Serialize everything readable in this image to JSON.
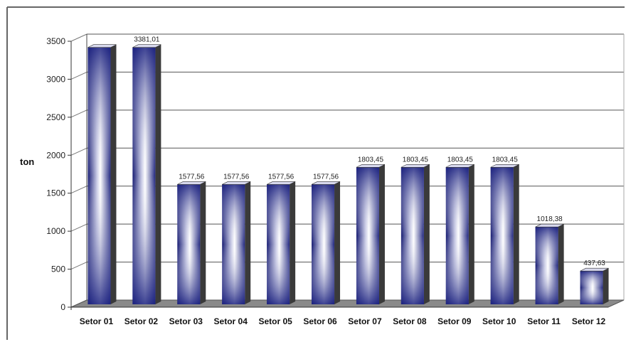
{
  "chart_data": {
    "type": "bar",
    "title": "",
    "xlabel": "",
    "ylabel": "ton",
    "ylim": [
      0,
      3500
    ],
    "yticks": [
      0,
      500,
      1000,
      1500,
      2000,
      2500,
      3000,
      3500
    ],
    "grid": true,
    "legend": "none",
    "categories": [
      "Setor 01",
      "Setor 02",
      "Setor 03",
      "Setor 04",
      "Setor 05",
      "Setor 06",
      "Setor 07",
      "Setor 08",
      "Setor 09",
      "Setor 10",
      "Setor 11",
      "Setor 12"
    ],
    "values": [
      3381.01,
      3381.01,
      1577.56,
      1577.56,
      1577.56,
      1577.56,
      1803.45,
      1803.45,
      1803.45,
      1803.45,
      1018.38,
      437.63
    ],
    "data_labels": [
      "",
      "3381,01",
      "1577,56",
      "1577,56",
      "1577,56",
      "1577,56",
      "1803,45",
      "1803,45",
      "1803,45",
      "1803,45",
      "1018,38",
      "437,63"
    ],
    "colors": {
      "bar_dark": "#1a1f7a",
      "bar_light": "#ffffff",
      "bar_side": "#3a3a3a",
      "floor": "#8a8a8a",
      "grid": "#555555"
    }
  }
}
